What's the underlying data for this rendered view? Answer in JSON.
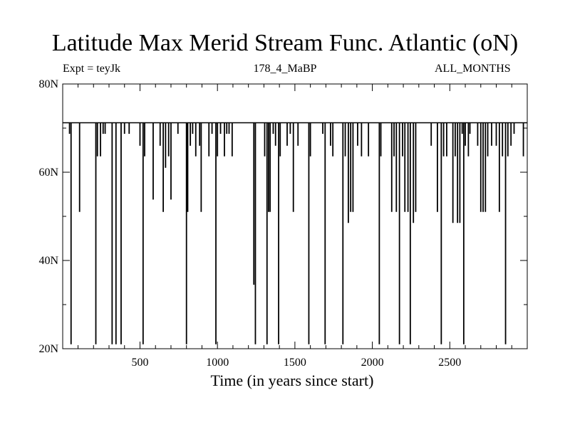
{
  "chart_data": {
    "type": "line",
    "title": "Latitude Max Merid Stream Func. Atlantic (oN)",
    "left_label": "Expt = teyJk",
    "subtitle": "178_4_MaBP",
    "right_label": "ALL_MONTHS",
    "xlabel": "Time (in years since start)",
    "ylabel": "",
    "xlim": [
      1,
      3000
    ],
    "ylim": [
      20,
      80
    ],
    "x_ticks": [
      500,
      1000,
      1500,
      2000,
      2500
    ],
    "x_tick_labels": [
      "500",
      "1000",
      "1500",
      "2000",
      "2500"
    ],
    "y_ticks": [
      20,
      40,
      60,
      80
    ],
    "y_tick_labels": [
      "20N",
      "40N",
      "60N",
      "80N"
    ],
    "baseline": 71.2,
    "grid": false,
    "series": [
      {
        "color": "#000000",
        "spikes": [
          {
            "x": 45,
            "y": 68.7
          },
          {
            "x": 55,
            "y": 21
          },
          {
            "x": 110,
            "y": 51
          },
          {
            "x": 215,
            "y": 21
          },
          {
            "x": 225,
            "y": 63.6
          },
          {
            "x": 245,
            "y": 63.6
          },
          {
            "x": 262,
            "y": 68.7
          },
          {
            "x": 275,
            "y": 68.7
          },
          {
            "x": 320,
            "y": 21
          },
          {
            "x": 345,
            "y": 21
          },
          {
            "x": 378,
            "y": 21
          },
          {
            "x": 400,
            "y": 68.7
          },
          {
            "x": 430,
            "y": 68.7
          },
          {
            "x": 500,
            "y": 66
          },
          {
            "x": 520,
            "y": 21
          },
          {
            "x": 530,
            "y": 63.6
          },
          {
            "x": 585,
            "y": 53.8
          },
          {
            "x": 630,
            "y": 66
          },
          {
            "x": 650,
            "y": 51
          },
          {
            "x": 665,
            "y": 61
          },
          {
            "x": 685,
            "y": 63.6
          },
          {
            "x": 700,
            "y": 53.8
          },
          {
            "x": 745,
            "y": 68.7
          },
          {
            "x": 800,
            "y": 21
          },
          {
            "x": 808,
            "y": 51
          },
          {
            "x": 825,
            "y": 66
          },
          {
            "x": 840,
            "y": 68.7
          },
          {
            "x": 860,
            "y": 63.6
          },
          {
            "x": 885,
            "y": 66
          },
          {
            "x": 895,
            "y": 51
          },
          {
            "x": 945,
            "y": 63.6
          },
          {
            "x": 965,
            "y": 68.7
          },
          {
            "x": 990,
            "y": 21
          },
          {
            "x": 1000,
            "y": 63.6
          },
          {
            "x": 1020,
            "y": 68.7
          },
          {
            "x": 1045,
            "y": 63.6
          },
          {
            "x": 1060,
            "y": 68.7
          },
          {
            "x": 1075,
            "y": 68.7
          },
          {
            "x": 1095,
            "y": 63.6
          },
          {
            "x": 1235,
            "y": 34.5
          },
          {
            "x": 1245,
            "y": 21
          },
          {
            "x": 1305,
            "y": 63.6
          },
          {
            "x": 1320,
            "y": 21
          },
          {
            "x": 1330,
            "y": 51
          },
          {
            "x": 1340,
            "y": 51
          },
          {
            "x": 1360,
            "y": 68.7
          },
          {
            "x": 1375,
            "y": 66
          },
          {
            "x": 1395,
            "y": 21
          },
          {
            "x": 1405,
            "y": 63.6
          },
          {
            "x": 1450,
            "y": 66
          },
          {
            "x": 1470,
            "y": 68.7
          },
          {
            "x": 1490,
            "y": 51
          },
          {
            "x": 1520,
            "y": 66
          },
          {
            "x": 1590,
            "y": 21
          },
          {
            "x": 1600,
            "y": 63.6
          },
          {
            "x": 1680,
            "y": 68.7
          },
          {
            "x": 1695,
            "y": 21
          },
          {
            "x": 1730,
            "y": 66
          },
          {
            "x": 1745,
            "y": 63.6
          },
          {
            "x": 1810,
            "y": 21
          },
          {
            "x": 1825,
            "y": 63.6
          },
          {
            "x": 1845,
            "y": 48.5
          },
          {
            "x": 1860,
            "y": 51
          },
          {
            "x": 1875,
            "y": 51
          },
          {
            "x": 1905,
            "y": 66
          },
          {
            "x": 1930,
            "y": 63.6
          },
          {
            "x": 1975,
            "y": 63.6
          },
          {
            "x": 2045,
            "y": 21
          },
          {
            "x": 2055,
            "y": 63.6
          },
          {
            "x": 2125,
            "y": 51
          },
          {
            "x": 2140,
            "y": 63.6
          },
          {
            "x": 2155,
            "y": 51
          },
          {
            "x": 2175,
            "y": 21
          },
          {
            "x": 2195,
            "y": 63.6
          },
          {
            "x": 2210,
            "y": 51
          },
          {
            "x": 2230,
            "y": 51
          },
          {
            "x": 2245,
            "y": 21
          },
          {
            "x": 2265,
            "y": 48.5
          },
          {
            "x": 2280,
            "y": 51
          },
          {
            "x": 2380,
            "y": 66
          },
          {
            "x": 2420,
            "y": 51
          },
          {
            "x": 2445,
            "y": 21
          },
          {
            "x": 2460,
            "y": 63.6
          },
          {
            "x": 2480,
            "y": 63.6
          },
          {
            "x": 2520,
            "y": 48.5
          },
          {
            "x": 2535,
            "y": 63.6
          },
          {
            "x": 2550,
            "y": 48.5
          },
          {
            "x": 2565,
            "y": 48.5
          },
          {
            "x": 2580,
            "y": 68.7
          },
          {
            "x": 2590,
            "y": 21
          },
          {
            "x": 2600,
            "y": 66
          },
          {
            "x": 2620,
            "y": 63.6
          },
          {
            "x": 2630,
            "y": 68.7
          },
          {
            "x": 2680,
            "y": 66
          },
          {
            "x": 2700,
            "y": 51
          },
          {
            "x": 2715,
            "y": 51
          },
          {
            "x": 2730,
            "y": 51
          },
          {
            "x": 2745,
            "y": 63.6
          },
          {
            "x": 2770,
            "y": 66
          },
          {
            "x": 2800,
            "y": 66
          },
          {
            "x": 2820,
            "y": 51
          },
          {
            "x": 2840,
            "y": 63.6
          },
          {
            "x": 2860,
            "y": 21
          },
          {
            "x": 2875,
            "y": 63.6
          },
          {
            "x": 2895,
            "y": 66
          },
          {
            "x": 2915,
            "y": 68.7
          },
          {
            "x": 2975,
            "y": 63.6
          }
        ]
      }
    ]
  }
}
